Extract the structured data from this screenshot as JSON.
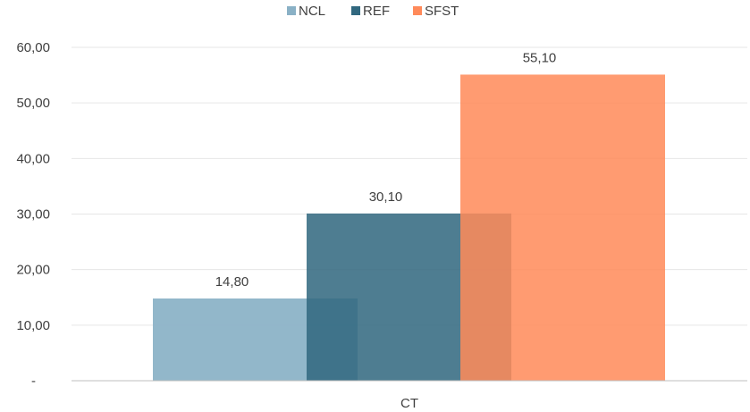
{
  "chart_data": {
    "type": "bar",
    "categories": [
      "CT"
    ],
    "series": [
      {
        "name": "NCL",
        "values": [
          14.8
        ],
        "label": "14,80",
        "color": "#8AB1C6",
        "opacity": 0.93
      },
      {
        "name": "REF",
        "values": [
          30.1
        ],
        "label": "30,10",
        "color": "#31687F",
        "opacity": 0.86
      },
      {
        "name": "SFST",
        "values": [
          55.1
        ],
        "label": "55,10",
        "color": "#FF8A5A",
        "opacity": 0.86
      }
    ],
    "ylim": [
      0,
      60
    ],
    "ytick_values": [
      0,
      10,
      20,
      30,
      40,
      50,
      60
    ],
    "ytick_labels": [
      "-",
      "10,00",
      "20,00",
      "30,00",
      "40,00",
      "50,00",
      "60,00"
    ],
    "grid": true,
    "legend_position": "top-center",
    "bars_overlap": true
  }
}
